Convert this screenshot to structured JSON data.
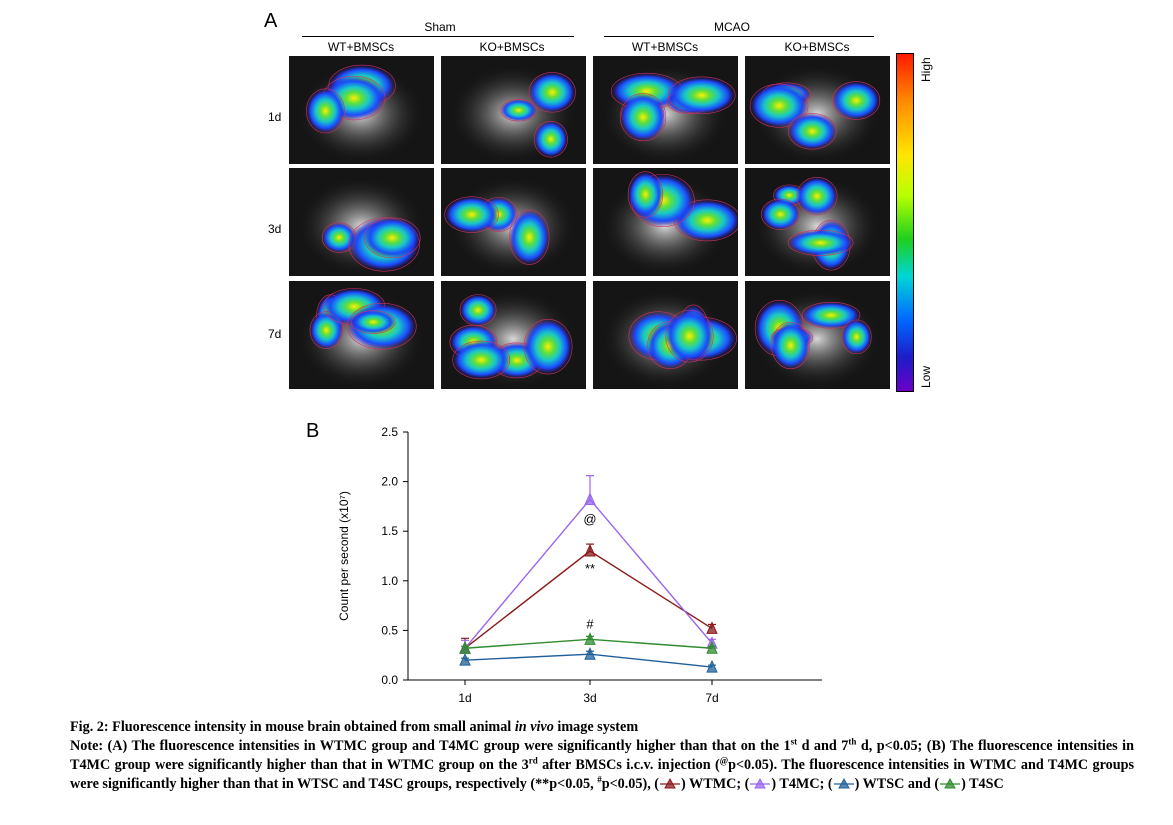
{
  "panelA": {
    "letter": "A",
    "groups": [
      "Sham",
      "MCAO"
    ],
    "columns": [
      "WT+BMSCs",
      "KO+BMSCs",
      "WT+BMSCs",
      "KO+BMSCs"
    ],
    "rows": [
      "1d",
      "3d",
      "7d"
    ],
    "colorbar": {
      "high": "High",
      "low": "Low"
    }
  },
  "panelB": {
    "letter": "B"
  },
  "chart_data": {
    "type": "line",
    "x": [
      "1d",
      "3d",
      "7d"
    ],
    "ylabel": "Count per second (x10⁷)",
    "ylim": [
      0,
      2.5
    ],
    "yticks": [
      "0.0",
      "0.5",
      "1.0",
      "1.5",
      "2.0",
      "2.5"
    ],
    "series": [
      {
        "color": "#8b1a1a",
        "values": [
          0.32,
          1.3,
          0.52
        ],
        "errors": [
          0.1,
          0.07,
          0.04
        ]
      },
      {
        "color": "#9966ee",
        "values": [
          0.32,
          1.82,
          0.37
        ],
        "errors": [
          0.08,
          0.24,
          0.04
        ]
      },
      {
        "color": "#1f5f9a",
        "values": [
          0.2,
          0.26,
          0.13
        ],
        "errors": [
          0.02,
          0.03,
          0.02
        ]
      },
      {
        "color": "#2e8b2e",
        "values": [
          0.32,
          0.41,
          0.32
        ],
        "errors": [
          0.02,
          0.03,
          0.02
        ]
      }
    ],
    "annotations": [
      {
        "text": "@",
        "x": "3d",
        "y": 1.63
      },
      {
        "text": "**",
        "x": "3d",
        "y": 1.13
      },
      {
        "text": "#",
        "x": "3d",
        "y": 0.57
      }
    ]
  },
  "caption": {
    "title_pre": "Fig. 2: Fluorescence intensity in mouse brain obtained from small animal ",
    "title_em": "in vivo",
    "title_post": " image system",
    "n1": "Note: (A) The fluorescence intensities in WTMC group and T4MC group were significantly higher than that on the 1",
    "sup_st": "st",
    "n2": " d and 7",
    "sup_th": "th",
    "n3": " d, p<0.05; (B) The fluorescence intensities in T4MC group were significantly higher than that in WTMC group on the 3",
    "sup_rd": "rd",
    "n4": " after BMSCs i.c.v. injection (",
    "sup_at": "@",
    "n5": "p<0.05). The fluorescence intensities in WTMC and T4MC groups were significantly higher than that in WTSC and T4SC groups, respectively (**p<0.05, ",
    "sup_hash": "#",
    "n6": "p<0.05), (",
    "leg1": ") WTMC; (",
    "leg2": ") T4MC; (",
    "leg3": ") WTSC and (",
    "leg4": ") T4SC"
  }
}
